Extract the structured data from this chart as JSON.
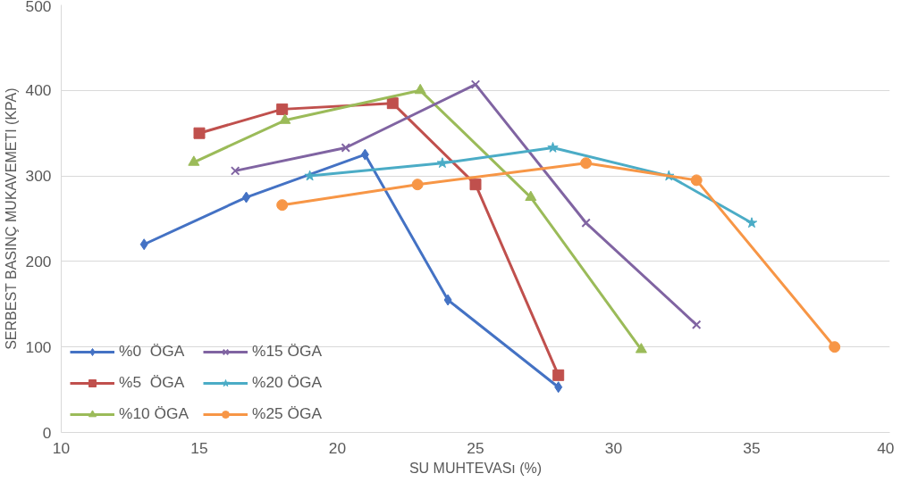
{
  "chart_data": {
    "type": "line",
    "xlabel": "SU MUHTEVASı (%)",
    "ylabel": "SERBEST BASINÇ MUKAVEMETI (KPA)",
    "xlim": [
      10,
      40
    ],
    "xticks": [
      10,
      15,
      20,
      25,
      30,
      35,
      40
    ],
    "ylim": [
      0,
      500
    ],
    "yticks": [
      0,
      100,
      200,
      300,
      400,
      500
    ],
    "grid": "y",
    "legend": "bottom left",
    "series": [
      {
        "name": "%0  ÖGA",
        "color": "#4472c4",
        "marker": "diamond",
        "x": [
          13,
          16.7,
          21,
          24,
          28
        ],
        "values": [
          220,
          275,
          325,
          155,
          53
        ]
      },
      {
        "name": "%5  ÖGA",
        "color": "#c0504d",
        "marker": "square",
        "x": [
          15,
          18,
          22,
          25,
          28
        ],
        "values": [
          350,
          378,
          385,
          290,
          67
        ]
      },
      {
        "name": "%10 ÖGA",
        "color": "#9bbb59",
        "marker": "triangle",
        "x": [
          14.8,
          18.1,
          23,
          27,
          31
        ],
        "values": [
          316,
          365,
          400,
          275,
          97
        ]
      },
      {
        "name": "%15 ÖGA",
        "color": "#8064a2",
        "marker": "cross",
        "x": [
          16.3,
          20.3,
          25,
          29,
          33
        ],
        "values": [
          306,
          333,
          407,
          245,
          126
        ]
      },
      {
        "name": "%20 ÖGA",
        "color": "#4bacc6",
        "marker": "star",
        "x": [
          19,
          23.8,
          27.8,
          32,
          35
        ],
        "values": [
          300,
          315,
          333,
          300,
          245
        ]
      },
      {
        "name": "%25 ÖGA",
        "color": "#f79646",
        "marker": "circle",
        "x": [
          18,
          22.9,
          29,
          33,
          38
        ],
        "values": [
          266,
          290,
          315,
          295,
          100
        ]
      }
    ]
  }
}
